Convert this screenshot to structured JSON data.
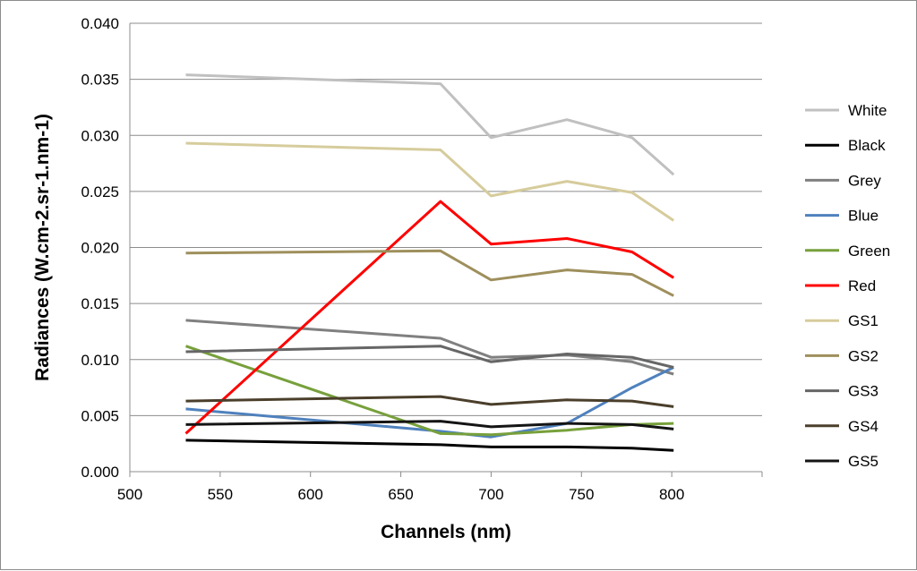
{
  "chart_data": {
    "type": "line",
    "title": "",
    "xlabel": "Channels (nm)",
    "ylabel": "Radiances (W.cm-2.sr-1.nm-1)",
    "xlim": [
      500,
      850
    ],
    "ylim": [
      0.0,
      0.04
    ],
    "x_ticks": [
      "500",
      "550",
      "600",
      "650",
      "700",
      "750",
      "800"
    ],
    "y_ticks": [
      "0.000",
      "0.005",
      "0.010",
      "0.015",
      "0.020",
      "0.025",
      "0.030",
      "0.035",
      "0.040"
    ],
    "grid": "horizontal",
    "legend_position": "right",
    "x": [
      531,
      672,
      700,
      742,
      778,
      801
    ],
    "series": [
      {
        "name": "White",
        "color": "#c0c0c0",
        "values": [
          0.0354,
          0.0346,
          0.0298,
          0.0314,
          0.0298,
          0.0265
        ]
      },
      {
        "name": "Black",
        "color": "#000000",
        "values": [
          0.0028,
          0.0024,
          0.0022,
          0.0022,
          0.0021,
          0.0019
        ]
      },
      {
        "name": "Grey",
        "color": "#808080",
        "values": [
          0.0135,
          0.0119,
          0.0102,
          0.0104,
          0.0098,
          0.0087
        ]
      },
      {
        "name": "Blue",
        "color": "#4f81bd",
        "values": [
          0.0056,
          0.0036,
          0.0031,
          0.0043,
          0.0075,
          0.0093
        ]
      },
      {
        "name": "Green",
        "color": "#77a03b",
        "values": [
          0.0112,
          0.0034,
          0.0033,
          0.0037,
          0.0042,
          0.0043
        ]
      },
      {
        "name": "Red",
        "color": "#ff0000",
        "values": [
          0.0034,
          0.0241,
          0.0203,
          0.0208,
          0.0196,
          0.0173
        ]
      },
      {
        "name": "GS1",
        "color": "#d6cc9c",
        "values": [
          0.0293,
          0.0287,
          0.0246,
          0.0259,
          0.0249,
          0.0224
        ]
      },
      {
        "name": "GS2",
        "color": "#9e8f5c",
        "values": [
          0.0195,
          0.0197,
          0.0171,
          0.018,
          0.0176,
          0.0157
        ]
      },
      {
        "name": "GS3",
        "color": "#666666",
        "values": [
          0.0107,
          0.0112,
          0.0098,
          0.0105,
          0.0102,
          0.0093
        ]
      },
      {
        "name": "GS4",
        "color": "#4b3f2b",
        "values": [
          0.0063,
          0.0067,
          0.006,
          0.0064,
          0.0063,
          0.0058
        ]
      },
      {
        "name": "GS5",
        "color": "#141414",
        "values": [
          0.0042,
          0.0045,
          0.004,
          0.0043,
          0.0042,
          0.0038
        ]
      }
    ]
  }
}
